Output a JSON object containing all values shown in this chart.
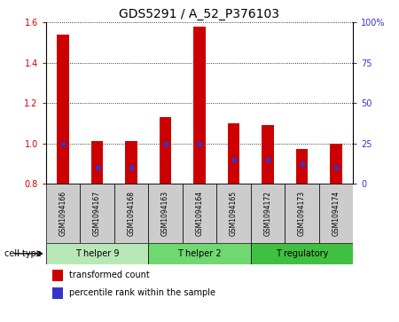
{
  "title": "GDS5291 / A_52_P376103",
  "samples": [
    "GSM1094166",
    "GSM1094167",
    "GSM1094168",
    "GSM1094163",
    "GSM1094164",
    "GSM1094165",
    "GSM1094172",
    "GSM1094173",
    "GSM1094174"
  ],
  "transformed_counts": [
    1.54,
    1.01,
    1.01,
    1.13,
    1.58,
    1.1,
    1.09,
    0.97,
    1.0
  ],
  "percentile_ranks": [
    25,
    10,
    10,
    25,
    25,
    15,
    15,
    12,
    10
  ],
  "bar_color": "#cc0000",
  "dot_color": "#3333cc",
  "ylim": [
    0.8,
    1.6
  ],
  "yticks_left": [
    0.8,
    1.0,
    1.2,
    1.4,
    1.6
  ],
  "yticks_right": [
    0,
    25,
    50,
    75,
    100
  ],
  "left_tick_color": "#cc0000",
  "right_tick_color": "#3333cc",
  "cell_types": [
    {
      "label": "T helper 9",
      "indices": [
        0,
        1,
        2
      ],
      "color": "#b8e8b8"
    },
    {
      "label": "T helper 2",
      "indices": [
        3,
        4,
        5
      ],
      "color": "#70d870"
    },
    {
      "label": "T regulatory",
      "indices": [
        6,
        7,
        8
      ],
      "color": "#40c040"
    }
  ],
  "cell_type_label": "cell type",
  "legend_items": [
    {
      "label": "transformed count",
      "color": "#cc0000"
    },
    {
      "label": "percentile rank within the sample",
      "color": "#3333cc"
    }
  ],
  "bar_width": 0.35,
  "title_fontsize": 10,
  "sample_label_fontsize": 5.5,
  "cell_type_fontsize": 7,
  "legend_fontsize": 7,
  "xlabel_area_color": "#cccccc",
  "bar_base": 0.8
}
